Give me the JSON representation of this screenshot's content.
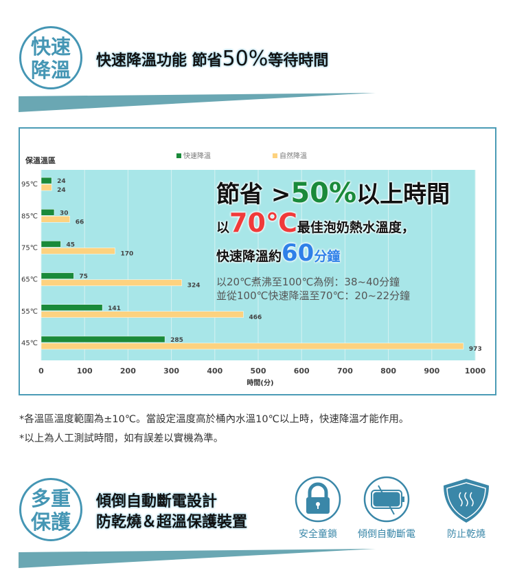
{
  "section1": {
    "badge": [
      "快速",
      "降溫"
    ],
    "headline_a": "快速降溫功能 節省",
    "headline_big": "50%",
    "headline_b": "等待時間"
  },
  "chart_data": {
    "type": "bar",
    "orientation": "horizontal",
    "ylabel": "保溫溫區",
    "xlabel": "時間(分)",
    "categories": [
      "95℃",
      "85℃",
      "75℃",
      "65℃",
      "55℃",
      "45℃"
    ],
    "series": [
      {
        "name": "快速降溫",
        "color": "#1a8a3a",
        "values": [
          24,
          30,
          45,
          75,
          141,
          285
        ]
      },
      {
        "name": "自然降溫",
        "color": "#fdd27f",
        "values": [
          24,
          66,
          170,
          324,
          466,
          973
        ]
      }
    ],
    "xlim": [
      0,
      1000
    ],
    "xticks": [
      0,
      100,
      200,
      300,
      400,
      500,
      600,
      700,
      800,
      900,
      1000
    ],
    "grid": true,
    "legend": "top",
    "plot_bg": "#a8e6e8"
  },
  "overlay": {
    "l1a": "節省 >",
    "l1b": "50%",
    "l1c": "以上時間",
    "l2a": "以",
    "l2b": "70℃",
    "l2c": "最佳泡奶熱水溫度，",
    "l3a": "快速降溫約",
    "l3b": "60",
    "l3c": "分鐘",
    "l4": "以20℃煮沸至100℃為例：38~40分鐘",
    "l5": "並從100℃快速降溫至70℃：20~22分鐘"
  },
  "notes": [
    "*各溫區溫度範圍為±10℃。當設定溫度高於桶內水溫10℃以上時，快速降溫才能作用。",
    "*以上為人工測試時間，如有誤差以實機為準。"
  ],
  "section2": {
    "badge": [
      "多重",
      "保護"
    ],
    "line1": "傾倒自動斷電設計",
    "line2": "防乾燒＆超溫保護裝置",
    "features": [
      {
        "icon": "lock-icon",
        "label": "安全童鎖"
      },
      {
        "icon": "tilt-power-off-icon",
        "label": "傾倒自動斷電"
      },
      {
        "icon": "shield-heat-icon",
        "label": "防止乾燒"
      }
    ]
  },
  "colors": {
    "accent": "#4596b4",
    "green": "#1a8a3a",
    "yellow": "#fdd27f",
    "red": "#f03a3a",
    "blue": "#2f80e8"
  }
}
